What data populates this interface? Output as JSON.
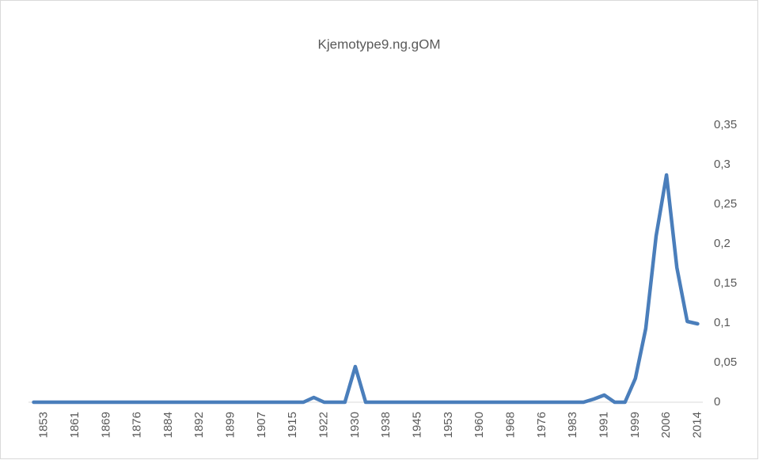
{
  "chart_data": {
    "type": "line",
    "title": "Kjemotype9.ng.gOM",
    "categories": [
      null,
      "1853",
      null,
      null,
      "1861",
      null,
      null,
      "1869",
      null,
      null,
      "1876",
      null,
      null,
      "1884",
      null,
      null,
      "1892",
      null,
      null,
      "1899",
      null,
      null,
      "1907",
      null,
      null,
      "1915",
      null,
      null,
      "1922",
      null,
      null,
      "1930",
      null,
      null,
      "1938",
      null,
      null,
      "1945",
      null,
      null,
      "1953",
      null,
      null,
      "1960",
      null,
      null,
      "1968",
      null,
      null,
      "1976",
      null,
      null,
      "1983",
      null,
      null,
      "1991",
      null,
      null,
      "1999",
      null,
      null,
      "2006",
      null,
      null,
      "2014"
    ],
    "series": [
      {
        "name": "Kjemotype9.ng.gOM",
        "color": "#4a7ebb",
        "values": [
          0,
          0,
          0,
          0,
          0,
          0,
          0,
          0,
          0,
          0,
          0,
          0,
          0,
          0,
          0,
          0,
          0,
          0,
          0,
          0,
          0,
          0,
          0,
          0,
          0,
          0,
          0,
          0.006,
          0,
          0,
          0,
          0.045,
          0,
          0,
          0,
          0,
          0,
          0,
          0,
          0,
          0,
          0,
          0,
          0,
          0,
          0,
          0,
          0,
          0,
          0,
          0,
          0,
          0,
          0,
          0.004,
          0.009,
          0,
          0,
          0.03,
          0.093,
          0.21,
          0.287,
          0.17,
          0.102,
          0.099
        ]
      }
    ],
    "ylim": [
      0,
      0.35
    ],
    "yticks": [
      0,
      {
        "value": 0.05,
        "label": "0,05"
      },
      {
        "value": 0.1,
        "label": "0,1"
      },
      {
        "value": 0.15,
        "label": "0,15"
      },
      {
        "value": 0.2,
        "label": "0,2"
      },
      {
        "value": 0.25,
        "label": "0,25"
      },
      {
        "value": 0.3,
        "label": "0,3"
      },
      {
        "value": 0.35,
        "label": "0,35"
      }
    ],
    "y_axis_side": "right",
    "grid": false
  }
}
